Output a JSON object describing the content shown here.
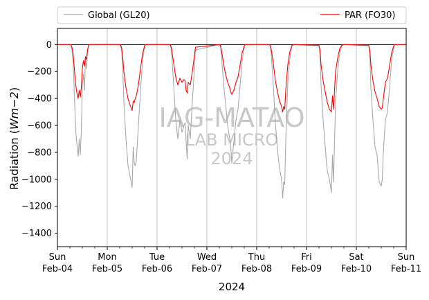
{
  "chart_data": {
    "type": "line",
    "title": "",
    "xlabel": "2024",
    "ylabel_prefix": "Radiation (",
    "ylabel_unit": "Wm−2",
    "ylabel_suffix": ")",
    "ylim": [
      -1500,
      120
    ],
    "yticks": [
      0,
      -200,
      -400,
      -600,
      -800,
      -1000,
      -1200,
      -1400
    ],
    "x_start": "2024-02-04 00:00",
    "x_end": "2024-02-11 00:00",
    "x_ticks": [
      {
        "day": "Sun",
        "date": "Feb-04"
      },
      {
        "day": "Mon",
        "date": "Feb-05"
      },
      {
        "day": "Tue",
        "date": "Feb-06"
      },
      {
        "day": "Wed",
        "date": "Feb-07"
      },
      {
        "day": "Thu",
        "date": "Feb-08"
      },
      {
        "day": "Fri",
        "date": "Feb-09"
      },
      {
        "day": "Sat",
        "date": "Feb-10"
      },
      {
        "day": "Sun",
        "date": "Feb-11"
      }
    ],
    "grid": "vertical major",
    "legend_placement": "top, outside plot",
    "zero_line": true,
    "watermark": [
      "IAG-MATAO",
      "LAB MICRO",
      "2024"
    ],
    "series": [
      {
        "name": "Global (GL20)",
        "color": "#a9a9a9",
        "x": [
          "02-04 00:00",
          "02-04 06:00",
          "02-04 06:30",
          "02-04 07:00",
          "02-04 07:30",
          "02-04 08:00",
          "02-04 08:30",
          "02-04 09:00",
          "02-04 09:30",
          "02-04 10:00",
          "02-04 10:30",
          "02-04 11:00",
          "02-04 11:30",
          "02-04 12:00",
          "02-04 12:30",
          "02-04 13:00",
          "02-04 13:30",
          "02-04 14:00",
          "02-04 14:30",
          "02-04 15:00",
          "02-04 15:30",
          "02-04 16:00",
          "02-04 17:00",
          "02-04 18:00",
          "02-04 18:30",
          "02-05 06:00",
          "02-05 06:30",
          "02-05 07:00",
          "02-05 07:30",
          "02-05 08:00",
          "02-05 09:00",
          "02-05 10:00",
          "02-05 11:00",
          "02-05 12:00",
          "02-05 12:30",
          "02-05 13:00",
          "02-05 13:30",
          "02-05 14:00",
          "02-05 15:00",
          "02-05 16:00",
          "02-05 17:00",
          "02-05 18:00",
          "02-05 18:30",
          "02-06 06:00",
          "02-06 06:30",
          "02-06 07:00",
          "02-06 08:00",
          "02-06 09:00",
          "02-06 10:00",
          "02-06 11:00",
          "02-06 12:00",
          "02-06 13:00",
          "02-06 13:30",
          "02-06 14:00",
          "02-06 14:30",
          "02-06 15:00",
          "02-06 16:00",
          "02-06 17:00",
          "02-06 18:00",
          "02-06 18:30",
          "02-07 06:00",
          "02-07 06:30",
          "02-07 07:00",
          "02-07 08:00",
          "02-07 09:00",
          "02-07 10:00",
          "02-07 11:00",
          "02-07 11:30",
          "02-07 12:00",
          "02-07 13:00",
          "02-07 14:00",
          "02-07 15:00",
          "02-07 16:00",
          "02-07 17:00",
          "02-07 18:00",
          "02-07 18:30",
          "02-08 06:00",
          "02-08 06:30",
          "02-08 07:00",
          "02-08 08:00",
          "02-08 09:00",
          "02-08 10:00",
          "02-08 11:00",
          "02-08 12:00",
          "02-08 12:30",
          "02-08 13:00",
          "02-08 13:30",
          "02-08 14:00",
          "02-08 14:30",
          "02-08 15:00",
          "02-08 16:00",
          "02-08 17:00",
          "02-08 18:00",
          "02-08 18:30",
          "02-09 06:00",
          "02-09 06:30",
          "02-09 07:00",
          "02-09 08:00",
          "02-09 09:00",
          "02-09 10:00",
          "02-09 11:00",
          "02-09 12:00",
          "02-09 12:30",
          "02-09 13:00",
          "02-09 13:30",
          "02-09 14:00",
          "02-09 15:00",
          "02-09 16:00",
          "02-09 17:00",
          "02-09 18:00",
          "02-09 18:30",
          "02-10 06:00",
          "02-10 06:30",
          "02-10 07:00",
          "02-10 08:00",
          "02-10 09:00",
          "02-10 10:00",
          "02-10 11:00",
          "02-10 12:00",
          "02-10 12:30",
          "02-10 13:00",
          "02-10 14:00",
          "02-10 15:00",
          "02-10 16:00",
          "02-10 17:00",
          "02-10 18:00",
          "02-10 18:30",
          "02-11 00:00"
        ],
        "y": [
          0,
          0,
          -5,
          -40,
          -120,
          -300,
          -520,
          -680,
          -760,
          -830,
          -700,
          -820,
          -650,
          -300,
          -220,
          -340,
          -100,
          -180,
          -60,
          -10,
          0,
          0,
          0,
          0,
          0,
          0,
          -10,
          -60,
          -200,
          -420,
          -700,
          -900,
          -980,
          -1060,
          -760,
          -880,
          -900,
          -860,
          -600,
          -350,
          -120,
          -15,
          0,
          0,
          -10,
          -60,
          -300,
          -560,
          -700,
          -560,
          -650,
          -600,
          -580,
          -720,
          -850,
          -600,
          -700,
          -420,
          -180,
          -40,
          0,
          -10,
          -80,
          -280,
          -440,
          -600,
          -700,
          -760,
          -880,
          -720,
          -560,
          -480,
          -300,
          -120,
          -20,
          0,
          0,
          -10,
          -70,
          -300,
          -580,
          -780,
          -920,
          -1000,
          -1140,
          -1020,
          -1040,
          -720,
          -480,
          -280,
          -100,
          -10,
          0,
          0,
          -10,
          -80,
          -300,
          -560,
          -760,
          -940,
          -1000,
          -1100,
          -820,
          -1020,
          -720,
          -420,
          -200,
          -60,
          -10,
          0,
          0,
          -10,
          -80,
          -320,
          -560,
          -760,
          -820,
          -1020,
          -1050,
          -1000,
          -800,
          -560,
          -500,
          -320,
          -120,
          -20,
          0,
          0
        ]
      },
      {
        "name": "PAR (FO30)",
        "color": "#ff0000",
        "x": [
          "02-04 00:00",
          "02-04 06:00",
          "02-04 06:30",
          "02-04 07:00",
          "02-04 07:30",
          "02-04 08:00",
          "02-04 08:30",
          "02-04 09:00",
          "02-04 09:30",
          "02-04 10:00",
          "02-04 10:30",
          "02-04 11:00",
          "02-04 11:30",
          "02-04 12:00",
          "02-04 12:30",
          "02-04 13:00",
          "02-04 13:30",
          "02-04 14:00",
          "02-04 14:30",
          "02-04 15:00",
          "02-04 15:30",
          "02-04 16:00",
          "02-04 17:00",
          "02-04 18:00",
          "02-04 18:30",
          "02-05 06:00",
          "02-05 06:30",
          "02-05 07:00",
          "02-05 07:30",
          "02-05 08:00",
          "02-05 09:00",
          "02-05 10:00",
          "02-05 11:00",
          "02-05 12:00",
          "02-05 12:30",
          "02-05 13:00",
          "02-05 13:30",
          "02-05 14:00",
          "02-05 15:00",
          "02-05 16:00",
          "02-05 17:00",
          "02-05 18:00",
          "02-05 18:30",
          "02-06 06:00",
          "02-06 06:30",
          "02-06 07:00",
          "02-06 08:00",
          "02-06 09:00",
          "02-06 10:00",
          "02-06 11:00",
          "02-06 12:00",
          "02-06 13:00",
          "02-06 13:30",
          "02-06 14:00",
          "02-06 14:30",
          "02-06 15:00",
          "02-06 16:00",
          "02-06 17:00",
          "02-06 18:00",
          "02-06 18:30",
          "02-07 06:00",
          "02-07 06:30",
          "02-07 07:00",
          "02-07 08:00",
          "02-07 09:00",
          "02-07 10:00",
          "02-07 11:00",
          "02-07 11:30",
          "02-07 12:00",
          "02-07 13:00",
          "02-07 14:00",
          "02-07 15:00",
          "02-07 16:00",
          "02-07 17:00",
          "02-07 18:00",
          "02-07 18:30",
          "02-08 06:00",
          "02-08 06:30",
          "02-08 07:00",
          "02-08 08:00",
          "02-08 09:00",
          "02-08 10:00",
          "02-08 11:00",
          "02-08 12:00",
          "02-08 12:30",
          "02-08 13:00",
          "02-08 13:30",
          "02-08 14:00",
          "02-08 14:30",
          "02-08 15:00",
          "02-08 16:00",
          "02-08 17:00",
          "02-08 18:00",
          "02-08 18:30",
          "02-09 06:00",
          "02-09 06:30",
          "02-09 07:00",
          "02-09 08:00",
          "02-09 09:00",
          "02-09 10:00",
          "02-09 11:00",
          "02-09 12:00",
          "02-09 12:30",
          "02-09 13:00",
          "02-09 13:30",
          "02-09 14:00",
          "02-09 15:00",
          "02-09 16:00",
          "02-09 17:00",
          "02-09 18:00",
          "02-09 18:30",
          "02-10 06:00",
          "02-10 06:30",
          "02-10 07:00",
          "02-10 08:00",
          "02-10 09:00",
          "02-10 10:00",
          "02-10 11:00",
          "02-10 12:00",
          "02-10 12:30",
          "02-10 13:00",
          "02-10 14:00",
          "02-10 15:00",
          "02-10 16:00",
          "02-10 17:00",
          "02-10 18:00",
          "02-10 18:30",
          "02-11 00:00"
        ],
        "y": [
          0,
          0,
          -3,
          -20,
          -60,
          -150,
          -250,
          -320,
          -370,
          -400,
          -340,
          -390,
          -320,
          -180,
          -120,
          -160,
          -90,
          -110,
          -40,
          -5,
          0,
          0,
          0,
          0,
          0,
          0,
          -5,
          -30,
          -100,
          -200,
          -320,
          -400,
          -450,
          -490,
          -420,
          -430,
          -400,
          -380,
          -300,
          -180,
          -70,
          -8,
          0,
          0,
          -5,
          -30,
          -140,
          -240,
          -300,
          -250,
          -280,
          -260,
          -270,
          -340,
          -360,
          -280,
          -300,
          -200,
          -80,
          -20,
          0,
          -5,
          -40,
          -140,
          -220,
          -280,
          -320,
          -350,
          -370,
          -340,
          -280,
          -240,
          -150,
          -60,
          -10,
          0,
          0,
          -5,
          -35,
          -140,
          -270,
          -350,
          -420,
          -460,
          -500,
          -460,
          -480,
          -340,
          -240,
          -150,
          -50,
          -5,
          0,
          0,
          -5,
          -40,
          -150,
          -270,
          -350,
          -430,
          -480,
          -500,
          -380,
          -480,
          -340,
          -200,
          -100,
          -30,
          -5,
          0,
          0,
          -5,
          -40,
          -150,
          -270,
          -350,
          -400,
          -460,
          -480,
          -470,
          -400,
          -280,
          -250,
          -160,
          -60,
          -10,
          0,
          0
        ]
      }
    ]
  }
}
